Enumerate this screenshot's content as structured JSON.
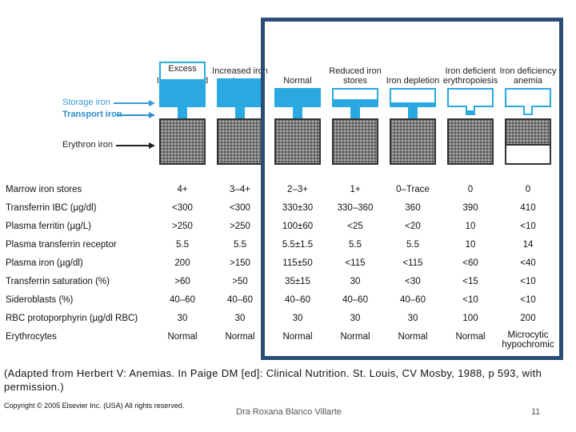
{
  "columns": [
    {
      "label": "Iron overload",
      "box_text": "Excess",
      "storage_fill": 0.62,
      "stem": "solid",
      "erythron_fill": 1.0
    },
    {
      "label": "Increased iron stores",
      "box_text": "",
      "storage_fill": 1.0,
      "stem": "solid",
      "erythron_fill": 1.0
    },
    {
      "label": "Normal",
      "box_text": "",
      "storage_fill": 1.0,
      "stem": "solid",
      "erythron_fill": 1.0
    },
    {
      "label": "Reduced iron stores",
      "box_text": "",
      "storage_fill": 0.4,
      "stem": "solid",
      "erythron_fill": 1.0
    },
    {
      "label": "Iron depletion",
      "box_text": "",
      "storage_fill": 0.18,
      "stem": "solid",
      "erythron_fill": 1.0
    },
    {
      "label": "Iron deficient erythropoiesis",
      "box_text": "",
      "storage_fill": 0.0,
      "stem": "partial",
      "erythron_fill": 1.0
    },
    {
      "label": "Iron deficiency anemia",
      "box_text": "",
      "storage_fill": 0.0,
      "stem": "empty",
      "erythron_fill": 0.6
    }
  ],
  "diagram_labels": {
    "storage_iron": "Storage iron",
    "transport_iron": "Transport iron",
    "erythron_iron": "Erythron iron"
  },
  "table": {
    "rows": [
      {
        "label": "Marrow iron stores",
        "values": [
          "4+",
          "3–4+",
          "2–3+",
          "1+",
          "0–Trace",
          "0",
          "0"
        ]
      },
      {
        "label": "Transferrin IBC (µg/dl)",
        "values": [
          "<300",
          "<300",
          "330±30",
          "330–360",
          "360",
          "390",
          "410"
        ]
      },
      {
        "label": "Plasma ferritin (µg/L)",
        "values": [
          ">250",
          ">250",
          "100±60",
          "<25",
          "<20",
          "10",
          "<10"
        ]
      },
      {
        "label": "Plasma transferrin receptor",
        "values": [
          "5.5",
          "5.5",
          "5.5±1.5",
          "5.5",
          "5.5",
          "10",
          "14"
        ]
      },
      {
        "label": "Plasma iron (µg/dl)",
        "values": [
          "200",
          ">150",
          "115±50",
          "<115",
          "<115",
          "<60",
          "<40"
        ]
      },
      {
        "label": "Transferrin saturation (%)",
        "values": [
          ">60",
          ">50",
          "35±15",
          "30",
          "<30",
          "<15",
          "<10"
        ]
      },
      {
        "label": "Sideroblasts (%)",
        "values": [
          "40–60",
          "40–60",
          "40–60",
          "40–60",
          "40–60",
          "<10",
          "<10"
        ]
      },
      {
        "label": "RBC protoporphyrin (µg/dl RBC)",
        "values": [
          "30",
          "30",
          "30",
          "30",
          "30",
          "100",
          "200"
        ]
      },
      {
        "label": "Erythrocytes",
        "values": [
          "Normal",
          "Normal",
          "Normal",
          "Normal",
          "Normal",
          "Normal",
          "Microcytic hypochromic"
        ]
      }
    ]
  },
  "caption": "(Adapted from Herbert V: Anemias. In Paige DM [ed]: Clinical Nutrition. St. Louis, CV Mosby, 1988, p 593, with permission.)",
  "copyright": "Copyright © 2005 Elsevier Inc. (USA) All rights reserved.",
  "footer": "Dra Roxana Blanco Villarte",
  "page_number": "11",
  "colors": {
    "storage_blue": "#29a9e0",
    "label_blue": "#2a8fcf",
    "frame_navy": "#2b4e78",
    "erythron_gray": "#7d7d7d"
  }
}
